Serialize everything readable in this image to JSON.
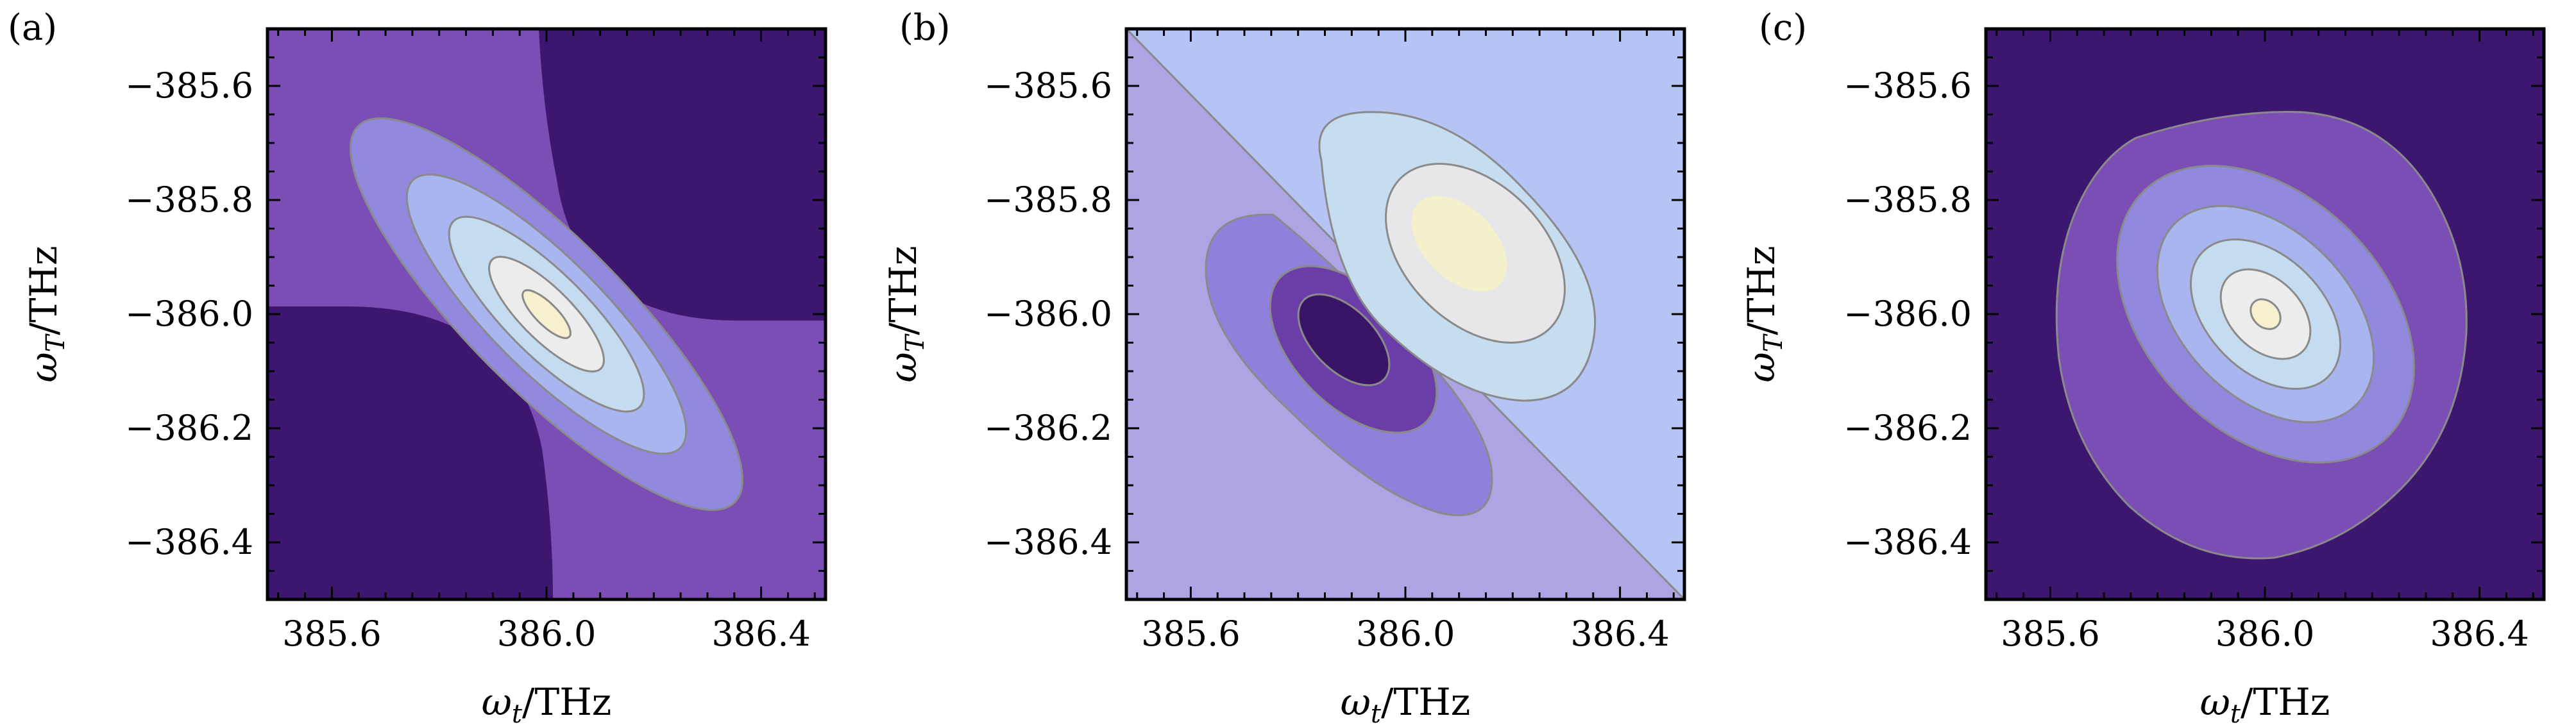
{
  "figure": {
    "colors": {
      "level0": "#3d1670",
      "level1": "#7b4eb5",
      "level2": "#9189de",
      "level3": "#a8b5ee",
      "level4": "#c5dcf0",
      "level5": "#ececec",
      "level6": "#f6f0cf",
      "neg_dark": "#3a1466",
      "neg_mid": "#6a3da8",
      "neg_light": "#8f81db",
      "bg_lower": "#ada4e3",
      "bg_upper": "#b5c4f4",
      "pos_light": "#c6dcef",
      "pos_mid": "#e7e7ea",
      "pos_peak": "#f3f1cc",
      "contour_line": "#8a8a8a",
      "frame": "#000000"
    }
  },
  "chart_data": [
    {
      "panel_label": "(a)",
      "type": "contour",
      "xlabel": "ω_t/THz",
      "ylabel": "ω_T/THz",
      "xlim": [
        385.48,
        386.52
      ],
      "ylim": [
        -386.5,
        -385.5
      ],
      "xticks": [
        "385.6",
        "386.0",
        "386.4"
      ],
      "yticks": [
        "−385.6",
        "−385.8",
        "−386.0",
        "−386.2",
        "−386.4"
      ],
      "xtick_values": [
        385.6,
        386.0,
        386.4
      ],
      "ytick_values": [
        -385.6,
        -385.8,
        -386.0,
        -386.2,
        -386.4
      ],
      "description_of_field": "elongated peak centered at (386.0, -386.0), oriented along anti-diagonal",
      "center": [
        386.0,
        -386.0
      ],
      "contour_levels": 7
    },
    {
      "panel_label": "(b)",
      "type": "contour",
      "xlabel": "ω_t/THz",
      "ylabel": "ω_T/THz",
      "xlim": [
        385.48,
        386.52
      ],
      "ylim": [
        -386.5,
        -385.5
      ],
      "xticks": [
        "385.6",
        "386.0",
        "386.4"
      ],
      "yticks": [
        "−385.6",
        "−385.8",
        "−386.0",
        "−386.2",
        "−386.4"
      ],
      "xtick_values": [
        385.6,
        386.0,
        386.4
      ],
      "ytick_values": [
        -385.6,
        -385.8,
        -386.0,
        -386.2,
        -386.4
      ],
      "positive_lobe_center": [
        386.07,
        -385.93
      ],
      "negative_lobe_center": [
        385.93,
        -386.07
      ],
      "contour_levels": 7
    },
    {
      "panel_label": "(c)",
      "type": "contour",
      "xlabel": "ω_t/THz",
      "ylabel": "ω_T/THz",
      "xlim": [
        385.48,
        386.52
      ],
      "ylim": [
        -386.5,
        -385.5
      ],
      "xticks": [
        "385.6",
        "386.0",
        "386.4"
      ],
      "yticks": [
        "−385.6",
        "−385.8",
        "−386.0",
        "−386.2",
        "−386.4"
      ],
      "xtick_values": [
        385.6,
        386.0,
        386.4
      ],
      "ytick_values": [
        -385.6,
        -385.8,
        -386.0,
        -386.2,
        -386.4
      ],
      "center": [
        386.0,
        -386.0
      ],
      "contour_levels": 6
    }
  ]
}
